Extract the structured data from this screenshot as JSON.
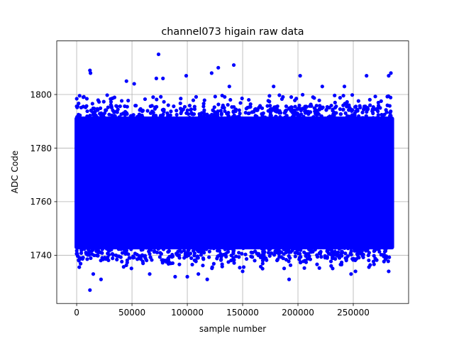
{
  "chart_data": {
    "type": "scatter",
    "title": "channel073 higain raw data",
    "xlabel": "sample number",
    "ylabel": "ADC Code",
    "xlim": [
      -18000,
      300000
    ],
    "ylim": [
      1722,
      1820
    ],
    "grid": true,
    "marker_color": "#0000ff",
    "x_ticks": [
      0,
      50000,
      100000,
      150000,
      200000,
      250000
    ],
    "x_tick_labels": [
      "0",
      "50000",
      "100000",
      "150000",
      "200000",
      "250000"
    ],
    "y_ticks": [
      1740,
      1760,
      1780,
      1800
    ],
    "y_tick_labels": [
      "1740",
      "1760",
      "1780",
      "1800"
    ],
    "series": [
      {
        "x_range": [
          0,
          285000
        ],
        "dense_band": [
          1743,
          1791
        ],
        "outer_band": [
          1738,
          1796
        ],
        "points": [
          {
            "x": 74000,
            "y": 1815
          },
          {
            "x": 12000,
            "y": 1809
          },
          {
            "x": 12500,
            "y": 1808
          },
          {
            "x": 142000,
            "y": 1811
          },
          {
            "x": 128000,
            "y": 1810
          },
          {
            "x": 284000,
            "y": 1808
          },
          {
            "x": 282000,
            "y": 1807
          },
          {
            "x": 202000,
            "y": 1807
          },
          {
            "x": 99000,
            "y": 1807
          },
          {
            "x": 262000,
            "y": 1807
          },
          {
            "x": 6000,
            "y": 1799
          },
          {
            "x": 52000,
            "y": 1804
          },
          {
            "x": 72000,
            "y": 1806
          },
          {
            "x": 78000,
            "y": 1806
          },
          {
            "x": 122000,
            "y": 1808
          },
          {
            "x": 138000,
            "y": 1803
          },
          {
            "x": 178000,
            "y": 1803
          },
          {
            "x": 222000,
            "y": 1803
          },
          {
            "x": 242000,
            "y": 1803
          },
          {
            "x": 45000,
            "y": 1805
          },
          {
            "x": 12000,
            "y": 1727
          },
          {
            "x": 22000,
            "y": 1731
          },
          {
            "x": 118000,
            "y": 1731
          },
          {
            "x": 192000,
            "y": 1731
          },
          {
            "x": 89000,
            "y": 1732
          },
          {
            "x": 100000,
            "y": 1732
          },
          {
            "x": 110000,
            "y": 1733
          },
          {
            "x": 15000,
            "y": 1733
          },
          {
            "x": 66000,
            "y": 1733
          },
          {
            "x": 248000,
            "y": 1733
          },
          {
            "x": 252000,
            "y": 1734
          },
          {
            "x": 150000,
            "y": 1734
          },
          {
            "x": 168000,
            "y": 1735
          },
          {
            "x": 282000,
            "y": 1734
          },
          {
            "x": 2000,
            "y": 1738
          },
          {
            "x": 60000,
            "y": 1737
          },
          {
            "x": 230000,
            "y": 1736
          }
        ]
      }
    ]
  }
}
